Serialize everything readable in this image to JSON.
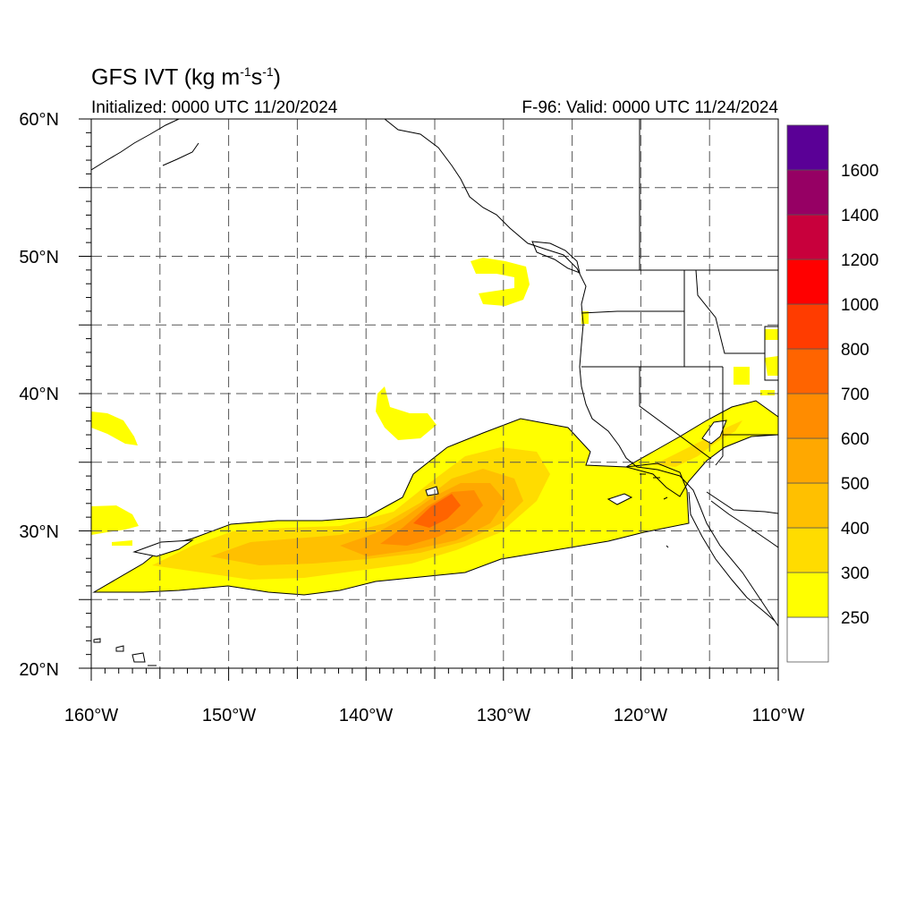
{
  "header": {
    "title_main": "GFS IVT (kg m",
    "title_sup1": "-1",
    "title_mid": "s",
    "title_sup2": "-1",
    "title_end": ")",
    "initialized": "Initialized: 0000 UTC 11/20/2024",
    "valid": "F-96: Valid: 0000 UTC 11/24/2024"
  },
  "axes": {
    "lat_labels": [
      "60°N",
      "50°N",
      "40°N",
      "30°N",
      "20°N"
    ],
    "lon_labels": [
      "160°W",
      "150°W",
      "140°W",
      "130°W",
      "120°W",
      "110°W"
    ],
    "lat_range": [
      20,
      60
    ],
    "lon_range": [
      -160,
      -110
    ]
  },
  "colorbar": {
    "labels": [
      "250",
      "300",
      "400",
      "500",
      "600",
      "700",
      "800",
      "1000",
      "1200",
      "1400",
      "1600"
    ],
    "colors": [
      "#ffffff",
      "#ffff00",
      "#ffdc00",
      "#ffc000",
      "#ffa800",
      "#ff8c00",
      "#ff6400",
      "#ff3c00",
      "#ff0000",
      "#c8003c",
      "#960064",
      "#5a0096"
    ]
  }
}
